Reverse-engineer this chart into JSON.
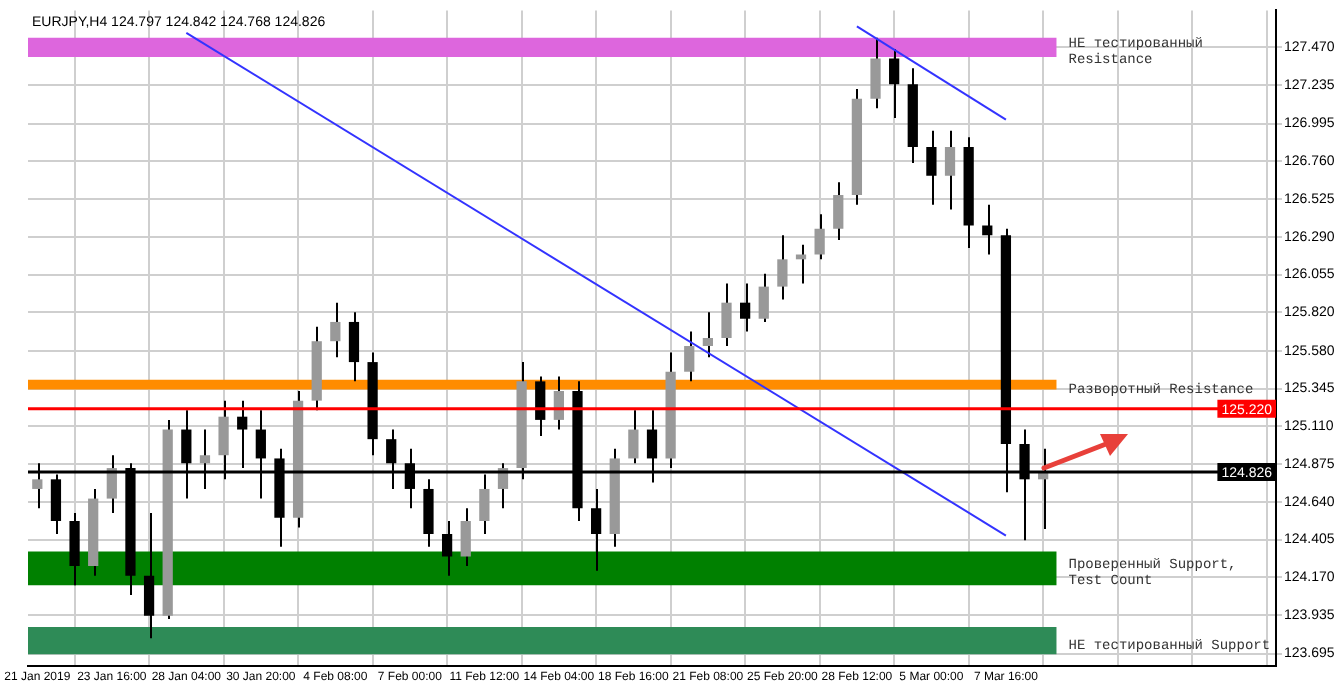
{
  "chart_data": {
    "type": "candlestick",
    "title": "EURJPY,H4 124.797 124.842 124.768 124.826",
    "categories": [
      "21 Jan 2019",
      null,
      null,
      null,
      "23 Jan 16:00",
      null,
      null,
      null,
      "28 Jan 04:00",
      null,
      null,
      null,
      "30 Jan 20:00",
      null,
      null,
      null,
      "4 Feb 08:00",
      null,
      null,
      null,
      "7 Feb 00:00",
      null,
      null,
      null,
      "11 Feb 12:00",
      null,
      null,
      null,
      "14 Feb 04:00",
      null,
      null,
      null,
      "18 Feb 16:00",
      null,
      null,
      null,
      "21 Feb 08:00",
      null,
      null,
      null,
      "25 Feb 20:00",
      null,
      null,
      null,
      "28 Feb 12:00",
      null,
      null,
      null,
      "5 Mar 00:00",
      null,
      null,
      null,
      "7 Mar 16:00",
      null,
      null,
      null,
      null,
      null,
      null,
      null,
      null,
      null,
      null,
      null,
      null,
      null,
      null
    ],
    "ohlc": [
      [
        124.72,
        124.88,
        124.6,
        124.78
      ],
      [
        124.78,
        124.81,
        124.44,
        124.52
      ],
      [
        124.52,
        124.57,
        124.12,
        124.24
      ],
      [
        124.24,
        124.72,
        124.18,
        124.66
      ],
      [
        124.66,
        124.93,
        124.57,
        124.85
      ],
      [
        124.85,
        124.88,
        124.06,
        124.18
      ],
      [
        124.18,
        124.57,
        123.79,
        123.93
      ],
      [
        123.93,
        125.15,
        123.91,
        125.09
      ],
      [
        125.09,
        125.21,
        124.66,
        124.88
      ],
      [
        124.88,
        125.09,
        124.72,
        124.93
      ],
      [
        124.93,
        125.27,
        124.78,
        125.17
      ],
      [
        125.17,
        125.27,
        124.85,
        125.09
      ],
      [
        125.09,
        125.21,
        124.66,
        124.91
      ],
      [
        124.91,
        124.97,
        124.36,
        124.54
      ],
      [
        124.54,
        125.33,
        124.48,
        125.27
      ],
      [
        125.27,
        125.73,
        125.21,
        125.64
      ],
      [
        125.64,
        125.88,
        125.54,
        125.76
      ],
      [
        125.76,
        125.82,
        125.39,
        125.51
      ],
      [
        125.51,
        125.57,
        124.93,
        125.03
      ],
      [
        125.03,
        125.09,
        124.72,
        124.88
      ],
      [
        124.88,
        124.97,
        124.6,
        124.72
      ],
      [
        124.72,
        124.78,
        124.36,
        124.44
      ],
      [
        124.44,
        124.52,
        124.18,
        124.3
      ],
      [
        124.3,
        124.6,
        124.24,
        124.52
      ],
      [
        124.52,
        124.81,
        124.44,
        124.72
      ],
      [
        124.72,
        124.88,
        124.6,
        124.85
      ],
      [
        124.85,
        125.51,
        124.78,
        125.39
      ],
      [
        125.39,
        125.42,
        125.05,
        125.15
      ],
      [
        125.15,
        125.42,
        125.09,
        125.33
      ],
      [
        125.33,
        125.39,
        124.52,
        124.6
      ],
      [
        124.6,
        124.72,
        124.21,
        124.44
      ],
      [
        124.44,
        124.97,
        124.36,
        124.91
      ],
      [
        124.91,
        125.21,
        124.88,
        125.09
      ],
      [
        125.09,
        125.21,
        124.76,
        124.91
      ],
      [
        124.91,
        125.57,
        124.85,
        125.45
      ],
      [
        125.45,
        125.7,
        125.39,
        125.61
      ],
      [
        125.61,
        125.82,
        125.54,
        125.66
      ],
      [
        125.66,
        126.0,
        125.61,
        125.88
      ],
      [
        125.88,
        126.0,
        125.7,
        125.78
      ],
      [
        125.78,
        126.06,
        125.76,
        125.98
      ],
      [
        125.98,
        126.3,
        125.9,
        126.15
      ],
      [
        126.15,
        126.24,
        126.0,
        126.18
      ],
      [
        126.18,
        126.43,
        126.15,
        126.34
      ],
      [
        126.34,
        126.63,
        126.27,
        126.55
      ],
      [
        126.55,
        127.21,
        126.49,
        127.15
      ],
      [
        127.15,
        127.53,
        127.09,
        127.4
      ],
      [
        127.4,
        127.46,
        127.03,
        127.24
      ],
      [
        127.24,
        127.34,
        126.75,
        126.85
      ],
      [
        126.85,
        126.95,
        126.49,
        126.67
      ],
      [
        126.67,
        126.95,
        126.46,
        126.85
      ],
      [
        126.85,
        126.91,
        126.22,
        126.36
      ],
      [
        126.36,
        126.49,
        126.18,
        126.3
      ],
      [
        126.3,
        126.34,
        124.7,
        125.0
      ],
      [
        125.0,
        125.09,
        124.4,
        124.78
      ],
      [
        124.78,
        124.97,
        124.47,
        124.826
      ],
      null,
      null,
      null,
      null,
      null,
      null,
      null,
      null,
      null,
      null,
      null,
      null
    ],
    "colors": [
      "#999999",
      "#000000",
      "#000000",
      "#999999",
      "#999999",
      "#000000",
      "#000000",
      "#999999",
      "#000000",
      "#999999",
      "#999999",
      "#000000",
      "#000000",
      "#000000",
      "#999999",
      "#999999",
      "#999999",
      "#000000",
      "#000000",
      "#000000",
      "#000000",
      "#000000",
      "#000000",
      "#999999",
      "#999999",
      "#999999",
      "#999999",
      "#000000",
      "#999999",
      "#000000",
      "#000000",
      "#999999",
      "#999999",
      "#000000",
      "#999999",
      "#999999",
      "#999999",
      "#999999",
      "#000000",
      "#999999",
      "#999999",
      "#999999",
      "#999999",
      "#999999",
      "#999999",
      "#999999",
      "#000000",
      "#000000",
      "#000000",
      "#999999",
      "#000000",
      "#000000",
      "#000000",
      "#000000",
      "#999999",
      null,
      null,
      null,
      null,
      null,
      null,
      null,
      null,
      null,
      null,
      null,
      null
    ],
    "series": [
      {
        "type": "line",
        "x": [
          "28 Jan 04:00",
          "7 Mar 16:00"
        ],
        "values": [
          127.56,
          124.43
        ],
        "color": "#3333ff"
      },
      {
        "type": "line",
        "x": [
          "28 Feb 12:00",
          "7 Mar 16:00"
        ],
        "values": [
          127.6,
          127.02
        ],
        "color": "#3333ff"
      }
    ],
    "ylim": [
      123.62,
      127.7
    ],
    "yticks": [
      123.695,
      123.935,
      {
        "value": 124.17,
        "label": "124.170"
      },
      124.405,
      {
        "value": 124.64,
        "label": "124.640"
      },
      124.875,
      {
        "value": 125.11,
        "label": "125.110"
      },
      125.345,
      {
        "value": 125.58,
        "label": "125.580"
      },
      {
        "value": 125.82,
        "label": "125.820"
      },
      126.055,
      {
        "value": 126.29,
        "label": "126.290"
      },
      126.525,
      {
        "value": 126.76,
        "label": "126.760"
      },
      126.995,
      127.235,
      {
        "value": 127.47,
        "label": "127.470"
      }
    ],
    "bands": [
      {
        "axis": "y",
        "from": 127.41,
        "to": 127.53,
        "label": "НЕ тестированный Resistance",
        "color": "#dd66dd"
      },
      {
        "axis": "y",
        "from": 125.34,
        "to": 125.4,
        "label": "Разворотный Resistance",
        "color": "#ff8c00"
      },
      {
        "axis": "y",
        "from": 124.12,
        "to": 124.33,
        "label": "Проверенный Support, Test Count",
        "color": "#008000"
      },
      {
        "axis": "y",
        "from": 123.69,
        "to": 123.86,
        "label": "НЕ тестированный Support",
        "color": "#2e8b57"
      }
    ],
    "ref_lines": [
      {
        "axis": "y",
        "value": 125.22,
        "label": "125.220",
        "color": "#ff0000"
      },
      {
        "axis": "y",
        "value": 124.826,
        "label": "124.826",
        "color": "#000000"
      }
    ],
    "grid": true,
    "legend": false
  }
}
